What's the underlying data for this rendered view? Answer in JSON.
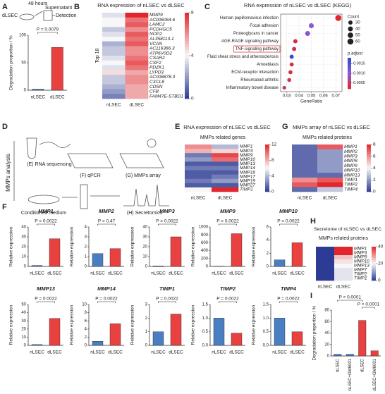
{
  "schematics": [
    {
      "panel": "A",
      "labels": [
        "48 hours",
        "Supernatant",
        "dLSEC",
        "Detection"
      ]
    },
    {
      "panel": "D",
      "title": "MMPs analysis",
      "labels": [
        "(E) RNA sequencing",
        "(F) qPCR",
        "(G) MMPs array",
        "Conditioned medium",
        "(H) Secretomics"
      ]
    }
  ],
  "chart_data": [
    {
      "type": "bar",
      "panel": "A",
      "ylabel": "Degradation proportion / %",
      "categories": [
        "nLSEC",
        "dLSEC"
      ],
      "values": [
        2,
        78
      ],
      "colors": [
        "#4a7ec2",
        "#e8413f"
      ],
      "ylim": [
        0,
        100
      ],
      "yticks": [
        0,
        50,
        100
      ],
      "pvalues": [
        "P = 0.0079"
      ]
    },
    {
      "type": "heatmap",
      "panel": "B",
      "title": "RNA expression of nLSEC vs dLSEC",
      "ylabel": "Top 18",
      "columns": [
        "nLSEC",
        "dLSEC"
      ],
      "rows": [
        "MMP9",
        "AC006064.6",
        "LAMC2",
        "PCDHGC5",
        "NOP2",
        "AL358113.1",
        "VCAN",
        "AC116366.3",
        "ATP6V0D2",
        "CSAR2",
        "CSF2",
        "PDZK1",
        "LYPD3",
        "AC008878.3",
        "CXCL8",
        "CDSN",
        "CFB",
        "FAM47E-STBD1"
      ],
      "values": [
        [
          3.5,
          8
        ],
        [
          4,
          6.5
        ],
        [
          4,
          7
        ],
        [
          3,
          6
        ],
        [
          3.5,
          7
        ],
        [
          4,
          6.5
        ],
        [
          2.5,
          7
        ],
        [
          3,
          6
        ],
        [
          3,
          6
        ],
        [
          3.5,
          6.5
        ],
        [
          4,
          7
        ],
        [
          3.5,
          6.5
        ],
        [
          4.5,
          5.5
        ],
        [
          3,
          6
        ],
        [
          3,
          6
        ],
        [
          2.5,
          5.5
        ],
        [
          2,
          5.5
        ],
        [
          1.5,
          5.5
        ]
      ],
      "colorlim": [
        0,
        8
      ],
      "colorticks": [
        0,
        4,
        8
      ],
      "colors": [
        "#2c3c94",
        "#f7f7f7",
        "#e3262b"
      ]
    },
    {
      "type": "dot",
      "panel": "C",
      "title": "RNA expression of nLSEC vs dLSEC (KEGG)",
      "categories": [
        "Human papillomavirus infection",
        "Focal adhesion",
        "Proteoglycans in cancer",
        "AGE-RAGE signaling pathway",
        "TNF-signaling pathway",
        "Fluid shear stress and atherosclerosis",
        "Amoebiasis",
        "ECM-receptor interaction",
        "Rheumatoid arthritis",
        "Inflammatory bowel disease"
      ],
      "x": [
        0.072,
        0.05,
        0.047,
        0.037,
        0.036,
        0.034,
        0.034,
        0.033,
        0.032,
        0.028
      ],
      "counts": [
        62,
        42,
        40,
        30,
        30,
        29,
        28,
        27,
        26,
        23
      ],
      "padj": [
        0.0002,
        0.001,
        0.0011,
        0.0003,
        0.0004,
        0.0017,
        0.0003,
        0.0003,
        0.0004,
        0.0005
      ],
      "xlabel": "GeneRatio",
      "xlim": [
        0.025,
        0.075
      ],
      "xticks": [
        0.03,
        0.04,
        0.05,
        0.06,
        0.07
      ],
      "size_legend_title": "Count",
      "size_ticks": [
        30,
        40,
        50,
        60
      ],
      "color_legend_title": "p.adjust",
      "colorlim": [
        0.0002,
        0.0018
      ],
      "color_ticks": [
        0.0005,
        {
          "value": 0.001,
          "label": "0.0010"
        },
        0.0015
      ],
      "colors": [
        "#e3262b",
        "#8a5bd0",
        "#2b4ad6"
      ]
    },
    {
      "type": "heatmap",
      "panel": "E",
      "title": "RNA expression of  nLSEC vs dLSEC",
      "subtitle": "MMPs related genes",
      "columns": [
        "nLSEC",
        "dLSEC"
      ],
      "rows": [
        "MMP1",
        "MMP3",
        "MMP9",
        "MMP10",
        "MMP13",
        "MMP14",
        "MMP16",
        "MMP17",
        "MMP19",
        "MMP27",
        "TIMP1"
      ],
      "values": [
        [
          9,
          4
        ],
        [
          8,
          7
        ],
        [
          2,
          11
        ],
        [
          3,
          10
        ],
        [
          1,
          1
        ],
        [
          2,
          2
        ],
        [
          1,
          1
        ],
        [
          1,
          2
        ],
        [
          2,
          3
        ],
        [
          1,
          1
        ],
        [
          6,
          12
        ]
      ],
      "colorlim": [
        0,
        12
      ],
      "colorticks": [
        0,
        4,
        8,
        12
      ],
      "colors": [
        "#2c3c94",
        "#f7f7f7",
        "#e3262b"
      ]
    },
    {
      "type": "heatmap",
      "panel": "G",
      "title": "MMPs array of nLSEC vs dLSEC",
      "subtitle": "MMPs related proteins",
      "columns": [
        "nLSEC",
        "dLSEC"
      ],
      "rows": [
        "MMP1",
        "MMP2",
        "MMP3",
        "MMP8",
        "MMP9",
        "MMP10",
        "MMP13",
        "TIMP1",
        "TIMP2",
        "TIMP4"
      ],
      "values": [
        [
          1,
          7
        ],
        [
          1,
          2
        ],
        [
          1,
          2
        ],
        [
          1,
          2
        ],
        [
          1,
          2
        ],
        [
          1,
          2
        ],
        [
          1,
          1
        ],
        [
          6,
          7
        ],
        [
          7,
          8
        ],
        [
          1,
          3
        ]
      ],
      "colorlim": [
        0,
        8
      ],
      "colorticks": [
        0,
        2,
        4,
        6,
        8
      ],
      "colors": [
        "#2c3c94",
        "#f7f7f7",
        "#e3262b"
      ]
    },
    {
      "type": "bar",
      "panel": "F",
      "title": "MMP1",
      "ylabel": "Relative expression",
      "categories": [
        "nLSEC",
        "dLSEC"
      ],
      "values": [
        1,
        28
      ],
      "colors": [
        "#4a7ec2",
        "#e8413f"
      ],
      "ylim": [
        0,
        40
      ],
      "yticks": [
        0,
        10,
        20,
        30,
        40
      ],
      "pvalues": [
        "P = 0.0022"
      ]
    },
    {
      "type": "bar",
      "title": "MMP2",
      "ylabel": "Relative expression",
      "categories": [
        "nLSEC",
        "dLSEC"
      ],
      "values": [
        1.3,
        1.8
      ],
      "colors": [
        "#4a7ec2",
        "#e8413f"
      ],
      "ylim": [
        0,
        4
      ],
      "yticks": [
        0,
        1,
        2,
        3,
        4
      ],
      "pvalues": [
        "P = 0.47"
      ]
    },
    {
      "type": "bar",
      "title": "MMP3",
      "ylabel": "Relative expression",
      "categories": [
        "nLSEC",
        "dLSEC"
      ],
      "values": [
        0.5,
        30
      ],
      "colors": [
        "#4a7ec2",
        "#e8413f"
      ],
      "ylim": [
        0,
        40
      ],
      "yticks": [
        0,
        10,
        20,
        30,
        40
      ],
      "pvalues": [
        "P = 0.0022"
      ]
    },
    {
      "type": "bar",
      "title": "MMP9",
      "ylabel": "Relative expression",
      "categories": [
        "nLSEC",
        "dLSEC"
      ],
      "values": [
        5,
        830
      ],
      "colors": [
        "#4a7ec2",
        "#e8413f"
      ],
      "ylim": [
        0,
        1000
      ],
      "yticks": [
        0,
        200,
        400,
        600,
        800,
        1000
      ],
      "pvalues": [
        "P = 0.0022"
      ]
    },
    {
      "type": "bar",
      "title": "MMP10",
      "ylabel": "Relative expression",
      "categories": [
        "nLSEC",
        "dLSEC"
      ],
      "values": [
        1,
        3.6
      ],
      "colors": [
        "#4a7ec2",
        "#e8413f"
      ],
      "ylim": [
        0,
        6
      ],
      "yticks": [
        0,
        2,
        4,
        6
      ],
      "pvalues": [
        "P = 0.0022"
      ]
    },
    {
      "type": "bar",
      "title": "MMP13",
      "ylabel": "Relative expression",
      "categories": [
        "nLSEC",
        "dLSEC"
      ],
      "values": [
        1,
        33
      ],
      "colors": [
        "#4a7ec2",
        "#e8413f"
      ],
      "ylim": [
        0,
        50
      ],
      "yticks": [
        0,
        10,
        20,
        30,
        40,
        50
      ],
      "pvalues": [
        "P = 0.0022"
      ]
    },
    {
      "type": "bar",
      "title": "MMP14",
      "ylabel": "Relative expression",
      "categories": [
        "nLSEC",
        "dLSEC"
      ],
      "values": [
        1,
        5.3
      ],
      "colors": [
        "#4a7ec2",
        "#e8413f"
      ],
      "ylim": [
        0,
        10
      ],
      "yticks": [
        0,
        2,
        4,
        6,
        8,
        10
      ],
      "pvalues": [
        "P = 0.0022"
      ]
    },
    {
      "type": "bar",
      "title": "TIMP1",
      "ylabel": "Relative expression",
      "categories": [
        "nLSEC",
        "dLSEC"
      ],
      "values": [
        1,
        2.3
      ],
      "colors": [
        "#4a7ec2",
        "#e8413f"
      ],
      "ylim": [
        0,
        3
      ],
      "yticks": [
        0,
        1,
        2,
        3
      ],
      "pvalues": [
        "P = 0.0022"
      ]
    },
    {
      "type": "bar",
      "title": "TIMP2",
      "ylabel": "Relative expression",
      "categories": [
        "nLSEC",
        "dLSEC"
      ],
      "values": [
        1,
        0.45
      ],
      "colors": [
        "#4a7ec2",
        "#e8413f"
      ],
      "ylim": [
        0,
        1.5
      ],
      "yticks": [
        {
          "value": 0,
          "label": "0.0"
        },
        0.5,
        {
          "value": 1,
          "label": "1.0"
        },
        1.5
      ],
      "pvalues": [
        "P = 0.0022"
      ]
    },
    {
      "type": "bar",
      "title": "TIMP4",
      "ylabel": "Relative expression",
      "categories": [
        "nLSEC",
        "dLSEC"
      ],
      "values": [
        1,
        0.5
      ],
      "colors": [
        "#4a7ec2",
        "#e8413f"
      ],
      "ylim": [
        0,
        1.5
      ],
      "yticks": [
        {
          "value": 0,
          "label": "0.0"
        },
        0.5,
        {
          "value": 1,
          "label": "1.0"
        },
        1.5
      ],
      "pvalues": [
        "P = 0.0022"
      ]
    },
    {
      "type": "heatmap",
      "panel": "H",
      "title": "Secretome of nLSEC vs dLSEC",
      "subtitle": "MMPs related proteins",
      "columns": [
        "nLSEC",
        "dLSEC"
      ],
      "rows": [
        "MMP1",
        "MMP3",
        "MMP9",
        "MMP10",
        "MMP13",
        "MMP7",
        "TIMP2",
        "TIMP1"
      ],
      "values": [
        [
          0,
          40
        ],
        [
          0,
          40
        ],
        [
          0,
          25
        ],
        [
          0,
          22
        ],
        [
          0,
          20
        ],
        [
          0,
          18
        ],
        [
          0,
          18
        ],
        [
          0,
          18
        ]
      ],
      "colorlim": [
        0,
        40
      ],
      "colorticks": [
        0,
        20,
        40
      ],
      "colors": [
        "#2c3c94",
        "#f7f7f7",
        "#e3262b"
      ]
    },
    {
      "type": "bar",
      "panel": "I",
      "ylabel": "Degradation proportion / %",
      "categories": [
        "nLSEC",
        "nLSEC+GM6001",
        "dLSEC",
        "dLSEC+GM6001"
      ],
      "values": [
        3,
        3,
        62,
        9
      ],
      "colors": [
        "#4a7ec2",
        "#4a7ec2",
        "#e8413f",
        "#e8413f"
      ],
      "ylim": [
        0,
        80
      ],
      "yticks": [
        0,
        20,
        40,
        60,
        80
      ],
      "pvalues": [
        "P < 0.0001",
        "P < 0.0001"
      ]
    }
  ]
}
